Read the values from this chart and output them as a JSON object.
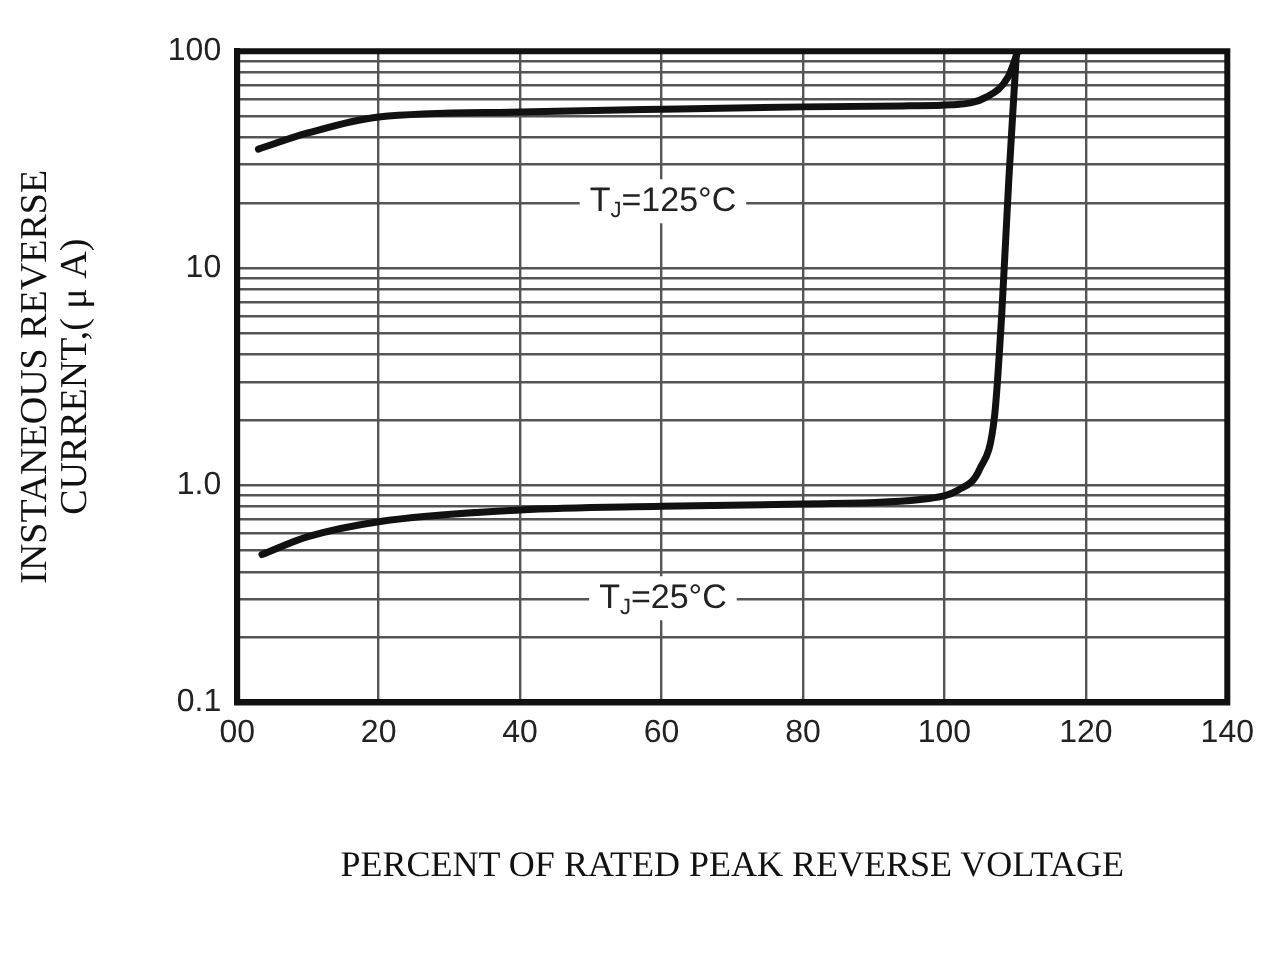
{
  "chart_data": {
    "type": "line",
    "xlabel": "PERCENT OF RATED PEAK REVERSE VOLTAGE",
    "ylabel": "INSTANEOUS REVERSE\nCURRENT,( μ A)",
    "log": "y",
    "grid": true,
    "legend": false,
    "marker": "none",
    "line_style": "solid",
    "xlim": [
      0,
      140
    ],
    "xticks": [
      {
        "value": 0,
        "label": "00"
      },
      20,
      40,
      60,
      80,
      100,
      120,
      140
    ],
    "ylim": [
      0.1,
      100
    ],
    "yticks": [
      {
        "value": 0.1,
        "label": "0.1"
      },
      {
        "value": 0.2,
        "label": null
      },
      {
        "value": 0.3,
        "label": null
      },
      {
        "value": 0.4,
        "label": null
      },
      {
        "value": 0.5,
        "label": null
      },
      {
        "value": 0.6,
        "label": null
      },
      {
        "value": 0.7,
        "label": null
      },
      {
        "value": 0.8,
        "label": null
      },
      {
        "value": 0.9,
        "label": null
      },
      {
        "value": 1,
        "label": "1.0"
      },
      {
        "value": 2,
        "label": null
      },
      {
        "value": 3,
        "label": null
      },
      {
        "value": 4,
        "label": null
      },
      {
        "value": 5,
        "label": null
      },
      {
        "value": 6,
        "label": null
      },
      {
        "value": 7,
        "label": null
      },
      {
        "value": 8,
        "label": null
      },
      {
        "value": 9,
        "label": null
      },
      10,
      {
        "value": 20,
        "label": null
      },
      {
        "value": 30,
        "label": null
      },
      {
        "value": 40,
        "label": null
      },
      {
        "value": 50,
        "label": null
      },
      {
        "value": 60,
        "label": null
      },
      {
        "value": 70,
        "label": null
      },
      {
        "value": 80,
        "label": null
      },
      {
        "value": 90,
        "label": null
      },
      100
    ],
    "series": [
      {
        "name": "T$_{J}$=125°C",
        "color": "#111111",
        "x": [
          3,
          10,
          20,
          40,
          60,
          80,
          95,
          101,
          106,
          109,
          110.4
        ],
        "values": [
          35.4,
          42,
          49.8,
          52.5,
          54,
          55.4,
          56,
          56.6,
          61.6,
          76,
          100
        ]
      },
      {
        "name": "T$_{J}$=25°C",
        "color": "#111111",
        "x": [
          3.5,
          10,
          20,
          40,
          60,
          80,
          97.8,
          101.9,
          105,
          107.1,
          108.1,
          109.1,
          110.2
        ],
        "values": [
          0.48,
          0.58,
          0.68,
          0.77,
          0.8,
          0.82,
          0.87,
          0.95,
          1.19,
          2.1,
          6.1,
          25.4,
          100
        ]
      }
    ]
  }
}
